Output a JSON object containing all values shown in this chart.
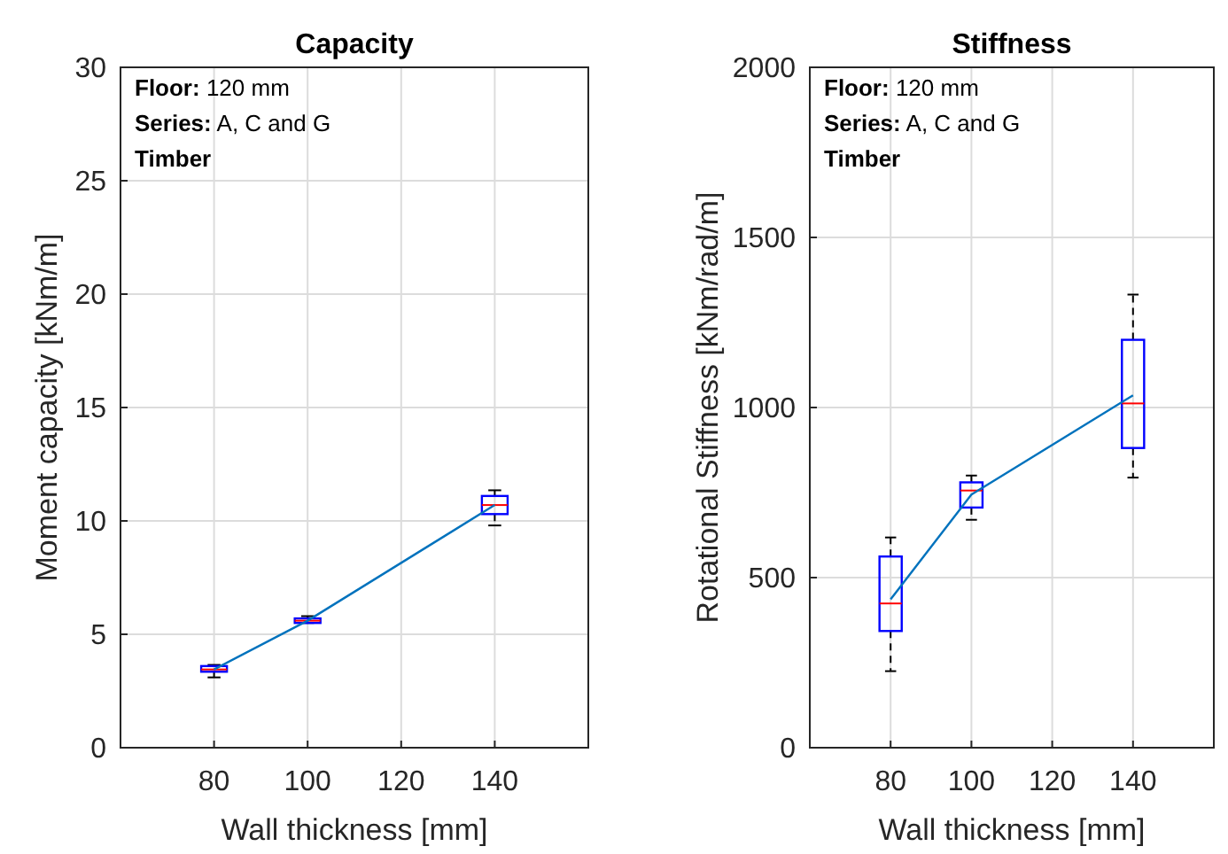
{
  "chart_data": [
    {
      "type": "box",
      "title": "Capacity",
      "xlabel": "Wall thickness [mm]",
      "ylabel": "Moment capacity [kNm/m]",
      "x": [
        80,
        100,
        140
      ],
      "xlim": [
        60,
        160
      ],
      "xticks": [
        80,
        100,
        120,
        140
      ],
      "ylim": [
        0,
        30
      ],
      "yticks": [
        0,
        5,
        10,
        15,
        20,
        25,
        30
      ],
      "grid": true,
      "annotations": [
        "Floor: 120 mm",
        "Series: A, C and G",
        "Timber"
      ],
      "series": [
        {
          "color": "#0000ff",
          "boxes": [
            {
              "low": 3.1,
              "q1": 3.35,
              "median": 3.45,
              "q3": 3.6,
              "high": 3.65
            },
            {
              "low": 5.5,
              "q1": 5.5,
              "median": 5.6,
              "q3": 5.7,
              "high": 5.8
            },
            {
              "low": 9.8,
              "q1": 10.3,
              "median": 10.7,
              "q3": 11.1,
              "high": 11.35
            }
          ]
        },
        {
          "type": "line",
          "color": "#0072bd",
          "values": [
            3.45,
            5.6,
            10.7
          ]
        }
      ]
    },
    {
      "type": "box",
      "title": "Stiffness",
      "xlabel": "Wall thickness [mm]",
      "ylabel": "Rotational Stiffness [kNm/rad/m]",
      "x": [
        80,
        100,
        140
      ],
      "xlim": [
        60,
        160
      ],
      "xticks": [
        80,
        100,
        120,
        140
      ],
      "ylim": [
        0,
        2000
      ],
      "yticks": [
        0,
        500,
        1000,
        1500,
        2000
      ],
      "grid": true,
      "annotations": [
        "Floor: 120 mm",
        "Series: A, C and G",
        "Timber"
      ],
      "series": [
        {
          "color": "#0000ff",
          "boxes": [
            {
              "low": 225,
              "q1": 343,
              "median": 424,
              "q3": 562,
              "high": 618
            },
            {
              "low": 670,
              "q1": 706,
              "median": 756,
              "q3": 780,
              "high": 800
            },
            {
              "low": 794,
              "q1": 881,
              "median": 1012,
              "q3": 1199,
              "high": 1332
            }
          ]
        },
        {
          "type": "line",
          "color": "#0072bd",
          "values": [
            436,
            744,
            1036
          ]
        }
      ]
    }
  ]
}
